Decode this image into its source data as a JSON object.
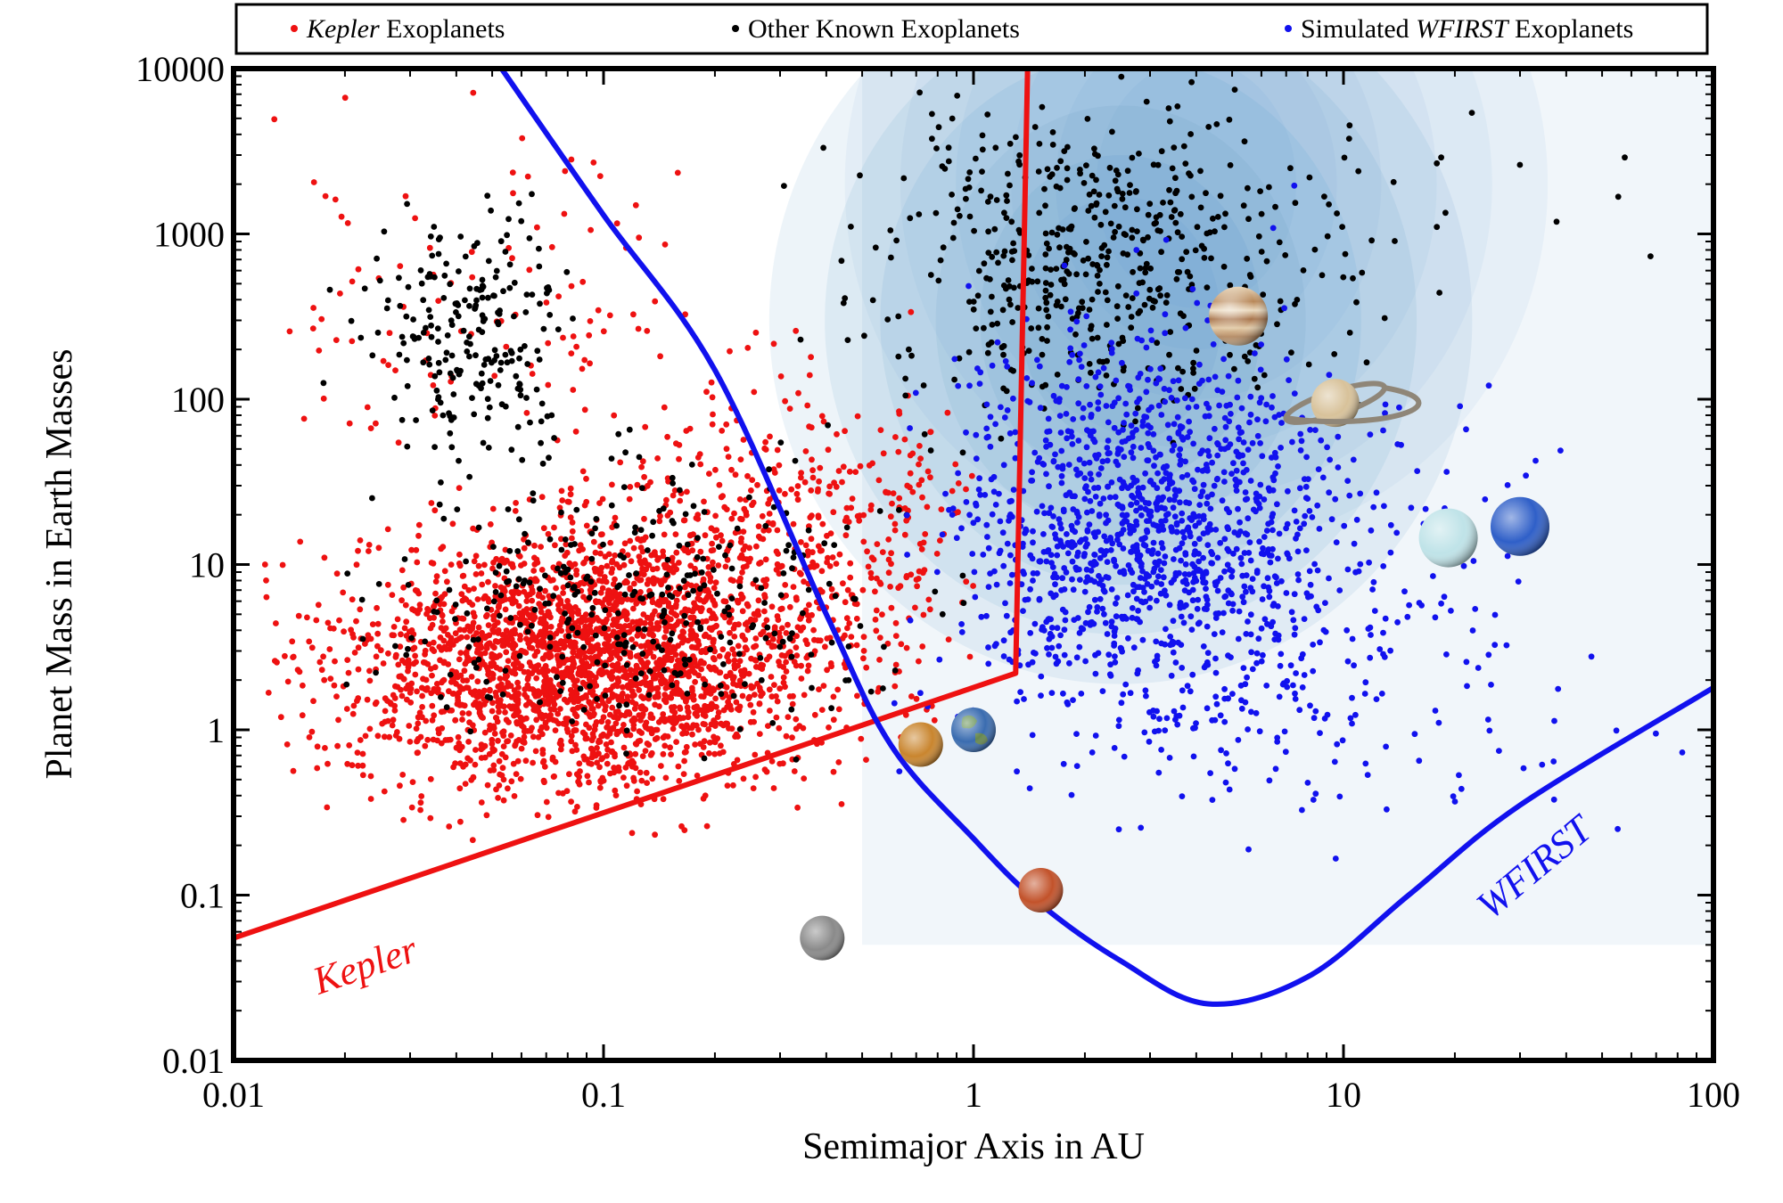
{
  "chart_data": {
    "type": "scatter",
    "title": "",
    "xlabel": "Semimajor Axis in AU",
    "ylabel": "Planet Mass in Earth Masses",
    "xscale": "log",
    "yscale": "log",
    "xlim": [
      0.01,
      100
    ],
    "ylim": [
      0.01,
      10000
    ],
    "xticks": [
      {
        "value": 0.01,
        "label": "0.01"
      },
      {
        "value": 0.1,
        "label": "0.1"
      },
      {
        "value": 1,
        "label": "1"
      },
      {
        "value": 10,
        "label": "10"
      },
      {
        "value": 100,
        "label": "100"
      }
    ],
    "yticks": [
      {
        "value": 0.01,
        "label": "0.01"
      },
      {
        "value": 0.1,
        "label": "0.1"
      },
      {
        "value": 1,
        "label": "1"
      },
      {
        "value": 10,
        "label": "10"
      },
      {
        "value": 100,
        "label": "100"
      },
      {
        "value": 1000,
        "label": "1000"
      },
      {
        "value": 10000,
        "label": "10000"
      }
    ],
    "legend": {
      "placement": "top",
      "entries": [
        {
          "series": "kepler",
          "prefix": "",
          "italic": "Kepler",
          "suffix": " Exoplanets",
          "color": "#ee1111"
        },
        {
          "series": "other",
          "prefix": "Other Known Exoplanets",
          "italic": "",
          "suffix": "",
          "color": "#000000"
        },
        {
          "series": "wfirst",
          "prefix": "Simulated ",
          "italic": "WFIRST",
          "suffix": " Exoplanets",
          "color": "#1111ee"
        }
      ]
    },
    "series": [
      {
        "name": "Kepler Exoplanets",
        "key": "kepler",
        "color": "#ee1111",
        "clusters": [
          {
            "center": [
              0.09,
              2.5
            ],
            "spread": [
              0.32,
              0.38
            ],
            "count": 2600,
            "xrange": [
              0.012,
              0.9
            ],
            "yrange": [
              0.2,
              30
            ]
          },
          {
            "center": [
              0.3,
              15
            ],
            "spread": [
              0.28,
              0.45
            ],
            "count": 500,
            "xrange": [
              0.05,
              1.0
            ],
            "yrange": [
              1,
              800
            ]
          },
          {
            "center": [
              0.05,
              300
            ],
            "spread": [
              0.3,
              0.6
            ],
            "count": 110,
            "xrange": [
              0.012,
              0.8
            ],
            "yrange": [
              50,
              9000
            ]
          }
        ]
      },
      {
        "name": "Other Known Exoplanets",
        "key": "other",
        "color": "#000000",
        "clusters": [
          {
            "center": [
              0.045,
              250
            ],
            "spread": [
              0.14,
              0.32
            ],
            "count": 220,
            "xrange": [
              0.012,
              0.3
            ],
            "yrange": [
              20,
              5000
            ]
          },
          {
            "center": [
              2.2,
              800
            ],
            "spread": [
              0.3,
              0.45
            ],
            "count": 520,
            "xrange": [
              0.2,
              20
            ],
            "yrange": [
              30,
              9000
            ]
          },
          {
            "center": [
              0.12,
              6
            ],
            "spread": [
              0.35,
              0.4
            ],
            "count": 330,
            "xrange": [
              0.02,
              1.0
            ],
            "yrange": [
              0.5,
              100
            ]
          },
          {
            "center": [
              20,
              2000
            ],
            "spread": [
              0.35,
              0.3
            ],
            "count": 18,
            "xrange": [
              8,
              70
            ],
            "yrange": [
              300,
              9000
            ]
          }
        ]
      },
      {
        "name": "Simulated WFIRST Exoplanets",
        "key": "wfirst",
        "color": "#1111ee",
        "clusters": [
          {
            "center": [
              3.0,
              15
            ],
            "spread": [
              0.26,
              0.6
            ],
            "count": 1350,
            "xrange": [
              0.6,
              80
            ],
            "yrange": [
              0.05,
              8000
            ]
          },
          {
            "center": [
              10,
              3
            ],
            "spread": [
              0.35,
              0.65
            ],
            "count": 160,
            "xrange": [
              2,
              90
            ],
            "yrange": [
              0.08,
              3000
            ]
          }
        ]
      }
    ],
    "curves": [
      {
        "name": "Kepler",
        "color": "#ee1111",
        "points": [
          [
            0.01,
            0.055
          ],
          [
            1.3,
            2.2
          ],
          [
            1.4,
            10000
          ]
        ]
      },
      {
        "name": "WFIRST",
        "color": "#1111ee",
        "points": [
          [
            0.053,
            10000
          ],
          [
            0.1,
            1300
          ],
          [
            0.2,
            150
          ],
          [
            0.4,
            5
          ],
          [
            0.6,
            0.8
          ],
          [
            1.0,
            0.22
          ],
          [
            1.5,
            0.09
          ],
          [
            2.5,
            0.04
          ],
          [
            4.3,
            0.022
          ],
          [
            8,
            0.032
          ],
          [
            15,
            0.1
          ],
          [
            30,
            0.35
          ],
          [
            100,
            1.8
          ]
        ]
      }
    ],
    "annotations": [
      {
        "text": "Kepler",
        "color": "#ee1111",
        "at": [
          0.017,
          0.025
        ],
        "angle": -19
      },
      {
        "text": "WFIRST",
        "color": "#1111ee",
        "at": [
          25,
          0.07
        ],
        "angle": -40
      }
    ],
    "solar_system": [
      {
        "name": "Mercury",
        "a": 0.39,
        "m": 0.055,
        "color": "#8a8a8a"
      },
      {
        "name": "Venus",
        "a": 0.72,
        "m": 0.815,
        "color": "#c9852e"
      },
      {
        "name": "Earth",
        "a": 1.0,
        "m": 1.0,
        "color": "#3a6cb0"
      },
      {
        "name": "Mars",
        "a": 1.52,
        "m": 0.107,
        "color": "#c2522a"
      },
      {
        "name": "Jupiter",
        "a": 5.2,
        "m": 318,
        "color": "#c8a27a"
      },
      {
        "name": "Saturn",
        "a": 9.5,
        "m": 95,
        "color": "#d8c29a"
      },
      {
        "name": "Uranus",
        "a": 19.2,
        "m": 14.5,
        "color": "#bfe3e8"
      },
      {
        "name": "Neptune",
        "a": 30,
        "m": 17,
        "color": "#2f5fc8"
      }
    ],
    "background": {
      "description": "blue density contours",
      "color": "#4a90c4"
    },
    "grid": false
  }
}
